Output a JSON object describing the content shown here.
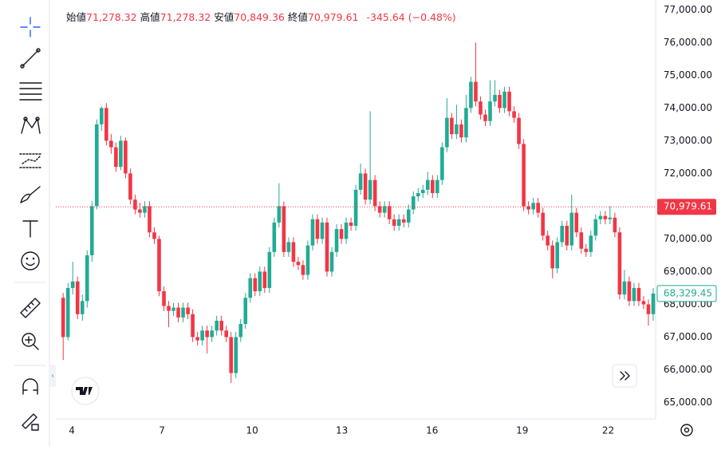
{
  "chart_data": {
    "type": "candlestick",
    "legend": {
      "open_label": "始値",
      "open": "71,278.32",
      "high_label": "高値",
      "high": "71,278.32",
      "low_label": "安値",
      "low": "70,849.36",
      "close_label": "終値",
      "close": "70,979.61",
      "change": "-345.64 (−0.48%)"
    },
    "up_color": "#22ab94",
    "down_color": "#f23645",
    "grid": true,
    "ylim": [
      64500,
      77300
    ],
    "yticks": [
      {
        "value": 65000,
        "label": "65,000.00"
      },
      {
        "value": 66000,
        "label": "66,000.00"
      },
      {
        "value": 67000,
        "label": "67,000.00"
      },
      {
        "value": 68000,
        "label": "68,000.00"
      },
      {
        "value": 69000,
        "label": "69,000.00"
      },
      {
        "value": 70000,
        "label": "70,000.00"
      },
      {
        "value": 71000,
        "label": "71,000.00"
      },
      {
        "value": 72000,
        "label": "72,000.00"
      },
      {
        "value": 73000,
        "label": "73,000.00"
      },
      {
        "value": 74000,
        "label": "74,000.00"
      },
      {
        "value": 75000,
        "label": "75,000.00"
      },
      {
        "value": 76000,
        "label": "76,000.00"
      },
      {
        "value": 77000,
        "label": "77,000.00"
      }
    ],
    "xlim": [
      -0.7,
      123.5
    ],
    "xticks": [
      {
        "value": 1.8,
        "label": "4"
      },
      {
        "value": 20.6,
        "label": "7"
      },
      {
        "value": 39.4,
        "label": "10"
      },
      {
        "value": 58.1,
        "label": "13"
      },
      {
        "value": 76.9,
        "label": "16"
      },
      {
        "value": 95.7,
        "label": "19"
      },
      {
        "value": 113.6,
        "label": "22"
      }
    ],
    "price_line": {
      "value": 70979.61,
      "label": "70,979.61",
      "color": "#f23645"
    },
    "last_price": {
      "value": 68329.45,
      "label": "68,329.45",
      "color": "#22ab94"
    },
    "ohlc": [
      [
        68200,
        68350,
        66300,
        67000
      ],
      [
        67000,
        68650,
        66900,
        68500
      ],
      [
        68500,
        69300,
        68300,
        68700
      ],
      [
        68700,
        68850,
        67550,
        67700
      ],
      [
        67700,
        68300,
        67500,
        68100
      ],
      [
        68100,
        69650,
        67900,
        69500
      ],
      [
        69500,
        71150,
        69300,
        71000
      ],
      [
        71000,
        73650,
        70900,
        73500
      ],
      [
        73500,
        74050,
        73300,
        74000
      ],
      [
        74000,
        74150,
        72850,
        73000
      ],
      [
        73000,
        73200,
        72600,
        72800
      ],
      [
        72800,
        72950,
        72050,
        72200
      ],
      [
        72200,
        73150,
        72100,
        73000
      ],
      [
        73000,
        73100,
        71850,
        72000
      ],
      [
        72000,
        72150,
        71050,
        71200
      ],
      [
        71200,
        71350,
        70750,
        70900
      ],
      [
        70900,
        71100,
        70650,
        70800
      ],
      [
        70800,
        71150,
        70650,
        71000
      ],
      [
        71000,
        71150,
        70050,
        70200
      ],
      [
        70200,
        70350,
        69850,
        70000
      ],
      [
        70000,
        70100,
        68250,
        68400
      ],
      [
        68400,
        68550,
        67800,
        67950
      ],
      [
        67950,
        68100,
        67300,
        67800
      ],
      [
        67800,
        68050,
        67650,
        67900
      ],
      [
        67900,
        68050,
        67450,
        67600
      ],
      [
        67600,
        68050,
        67450,
        67900
      ],
      [
        67900,
        68050,
        67550,
        67700
      ],
      [
        67700,
        67850,
        66850,
        67000
      ],
      [
        67000,
        67150,
        66750,
        66900
      ],
      [
        66900,
        67350,
        66750,
        67200
      ],
      [
        67200,
        67350,
        66500,
        67000
      ],
      [
        67000,
        67350,
        66850,
        67200
      ],
      [
        67200,
        67650,
        67050,
        67500
      ],
      [
        67500,
        67650,
        67050,
        67200
      ],
      [
        67200,
        67350,
        66850,
        67000
      ],
      [
        67000,
        67150,
        65600,
        65900
      ],
      [
        65900,
        67150,
        65750,
        67000
      ],
      [
        67000,
        67550,
        66850,
        67400
      ],
      [
        67400,
        68350,
        67250,
        68200
      ],
      [
        68200,
        68950,
        68050,
        68800
      ],
      [
        68800,
        68950,
        68250,
        68400
      ],
      [
        68400,
        69150,
        68250,
        69000
      ],
      [
        69000,
        69150,
        68350,
        68500
      ],
      [
        68500,
        69750,
        68350,
        69600
      ],
      [
        69600,
        70650,
        69450,
        70500
      ],
      [
        70500,
        71700,
        70350,
        71000
      ],
      [
        71000,
        71150,
        69450,
        69600
      ],
      [
        69600,
        70050,
        69450,
        69900
      ],
      [
        69900,
        70050,
        69150,
        69300
      ],
      [
        69300,
        69450,
        69050,
        69200
      ],
      [
        69200,
        69350,
        68750,
        68900
      ],
      [
        68900,
        69950,
        68750,
        69800
      ],
      [
        69800,
        70750,
        69650,
        70600
      ],
      [
        70600,
        70750,
        69850,
        70000
      ],
      [
        70000,
        70650,
        69850,
        70500
      ],
      [
        70500,
        70650,
        68850,
        69000
      ],
      [
        69000,
        69750,
        68850,
        69600
      ],
      [
        69600,
        70450,
        69450,
        70300
      ],
      [
        70300,
        70450,
        69850,
        70000
      ],
      [
        70000,
        70650,
        69850,
        70500
      ],
      [
        70500,
        70650,
        70250,
        70400
      ],
      [
        70400,
        71650,
        70250,
        71500
      ],
      [
        71500,
        72300,
        71350,
        72000
      ],
      [
        72000,
        72150,
        71050,
        71200
      ],
      [
        71200,
        73900,
        71050,
        71800
      ],
      [
        71800,
        71950,
        70850,
        71000
      ],
      [
        71000,
        71150,
        70650,
        70800
      ],
      [
        70800,
        71150,
        70650,
        71000
      ],
      [
        71000,
        71150,
        70450,
        70600
      ],
      [
        70600,
        70750,
        70250,
        70400
      ],
      [
        70400,
        70750,
        70250,
        70600
      ],
      [
        70600,
        70750,
        70350,
        70500
      ],
      [
        70500,
        71050,
        70350,
        70900
      ],
      [
        70900,
        71450,
        70750,
        71300
      ],
      [
        71300,
        71550,
        71150,
        71400
      ],
      [
        71400,
        71650,
        71250,
        71500
      ],
      [
        71500,
        72050,
        71350,
        71800
      ],
      [
        71800,
        71950,
        71250,
        71400
      ],
      [
        71400,
        71950,
        71250,
        71800
      ],
      [
        71800,
        72950,
        71650,
        72800
      ],
      [
        72800,
        74300,
        72650,
        73700
      ],
      [
        73700,
        73850,
        73050,
        73200
      ],
      [
        73200,
        74100,
        73050,
        73500
      ],
      [
        73500,
        73650,
        72950,
        73100
      ],
      [
        73100,
        74400,
        72950,
        74000
      ],
      [
        74000,
        74950,
        73850,
        74800
      ],
      [
        74800,
        76000,
        74050,
        74200
      ],
      [
        74200,
        74350,
        73650,
        73800
      ],
      [
        73800,
        73950,
        73450,
        73600
      ],
      [
        73600,
        74850,
        73450,
        74200
      ],
      [
        74200,
        74850,
        74050,
        74400
      ],
      [
        74400,
        74550,
        73850,
        74000
      ],
      [
        74000,
        74650,
        73850,
        74500
      ],
      [
        74500,
        74650,
        73750,
        73900
      ],
      [
        73900,
        74050,
        73550,
        73700
      ],
      [
        73700,
        73850,
        72750,
        72900
      ],
      [
        72900,
        73050,
        70850,
        71000
      ],
      [
        71000,
        71150,
        70750,
        70900
      ],
      [
        70900,
        71250,
        70750,
        71100
      ],
      [
        71100,
        71250,
        70650,
        70800
      ],
      [
        70800,
        70950,
        69950,
        70100
      ],
      [
        70100,
        70250,
        69650,
        69800
      ],
      [
        69800,
        69950,
        68800,
        69100
      ],
      [
        69100,
        70050,
        68950,
        69900
      ],
      [
        69900,
        70550,
        69750,
        70400
      ],
      [
        70400,
        70550,
        69650,
        69800
      ],
      [
        69800,
        71350,
        69650,
        70800
      ],
      [
        70800,
        70950,
        70050,
        70200
      ],
      [
        70200,
        70350,
        69550,
        69700
      ],
      [
        69700,
        69850,
        69450,
        69600
      ],
      [
        69600,
        70250,
        69450,
        70100
      ],
      [
        70100,
        70750,
        69950,
        70600
      ],
      [
        70600,
        70850,
        70450,
        70700
      ],
      [
        70700,
        70850,
        70450,
        70600
      ],
      [
        70600,
        71000,
        70450,
        70650
      ],
      [
        70650,
        70800,
        70050,
        70200
      ],
      [
        70200,
        70350,
        68150,
        68300
      ],
      [
        68300,
        69050,
        68150,
        68700
      ],
      [
        68700,
        68850,
        67950,
        68100
      ],
      [
        68100,
        68650,
        67950,
        68500
      ],
      [
        68500,
        68650,
        67950,
        68100
      ],
      [
        68100,
        68250,
        67850,
        68000
      ],
      [
        68000,
        68150,
        67350,
        67700
      ],
      [
        67700,
        68500,
        67500,
        68329.45
      ]
    ]
  }
}
